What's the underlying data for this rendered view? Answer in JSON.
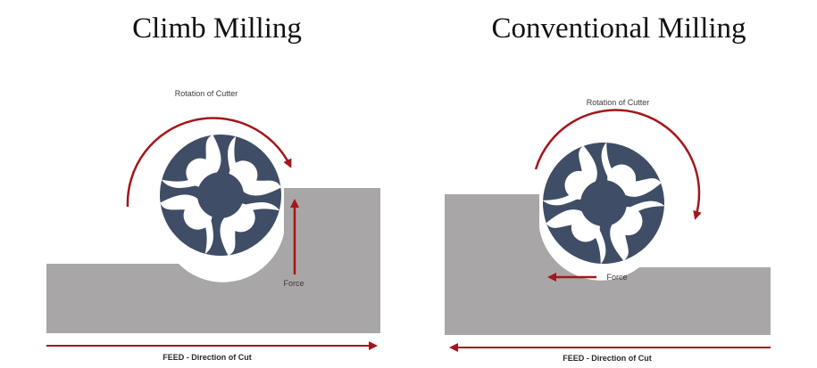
{
  "left": {
    "title": "Climb Milling",
    "rotation_label": "Rotation of Cutter",
    "force_label": "Force",
    "feed_label": "FEED - Direction of Cut"
  },
  "right": {
    "title": "Conventional Milling",
    "rotation_label": "Rotation of Cutter",
    "force_label": "Force",
    "feed_label": "FEED - Direction of Cut"
  },
  "colors": {
    "workpiece": "#a9a6a7",
    "cutter": "#3f4d66",
    "arrow": "#a3161b"
  }
}
